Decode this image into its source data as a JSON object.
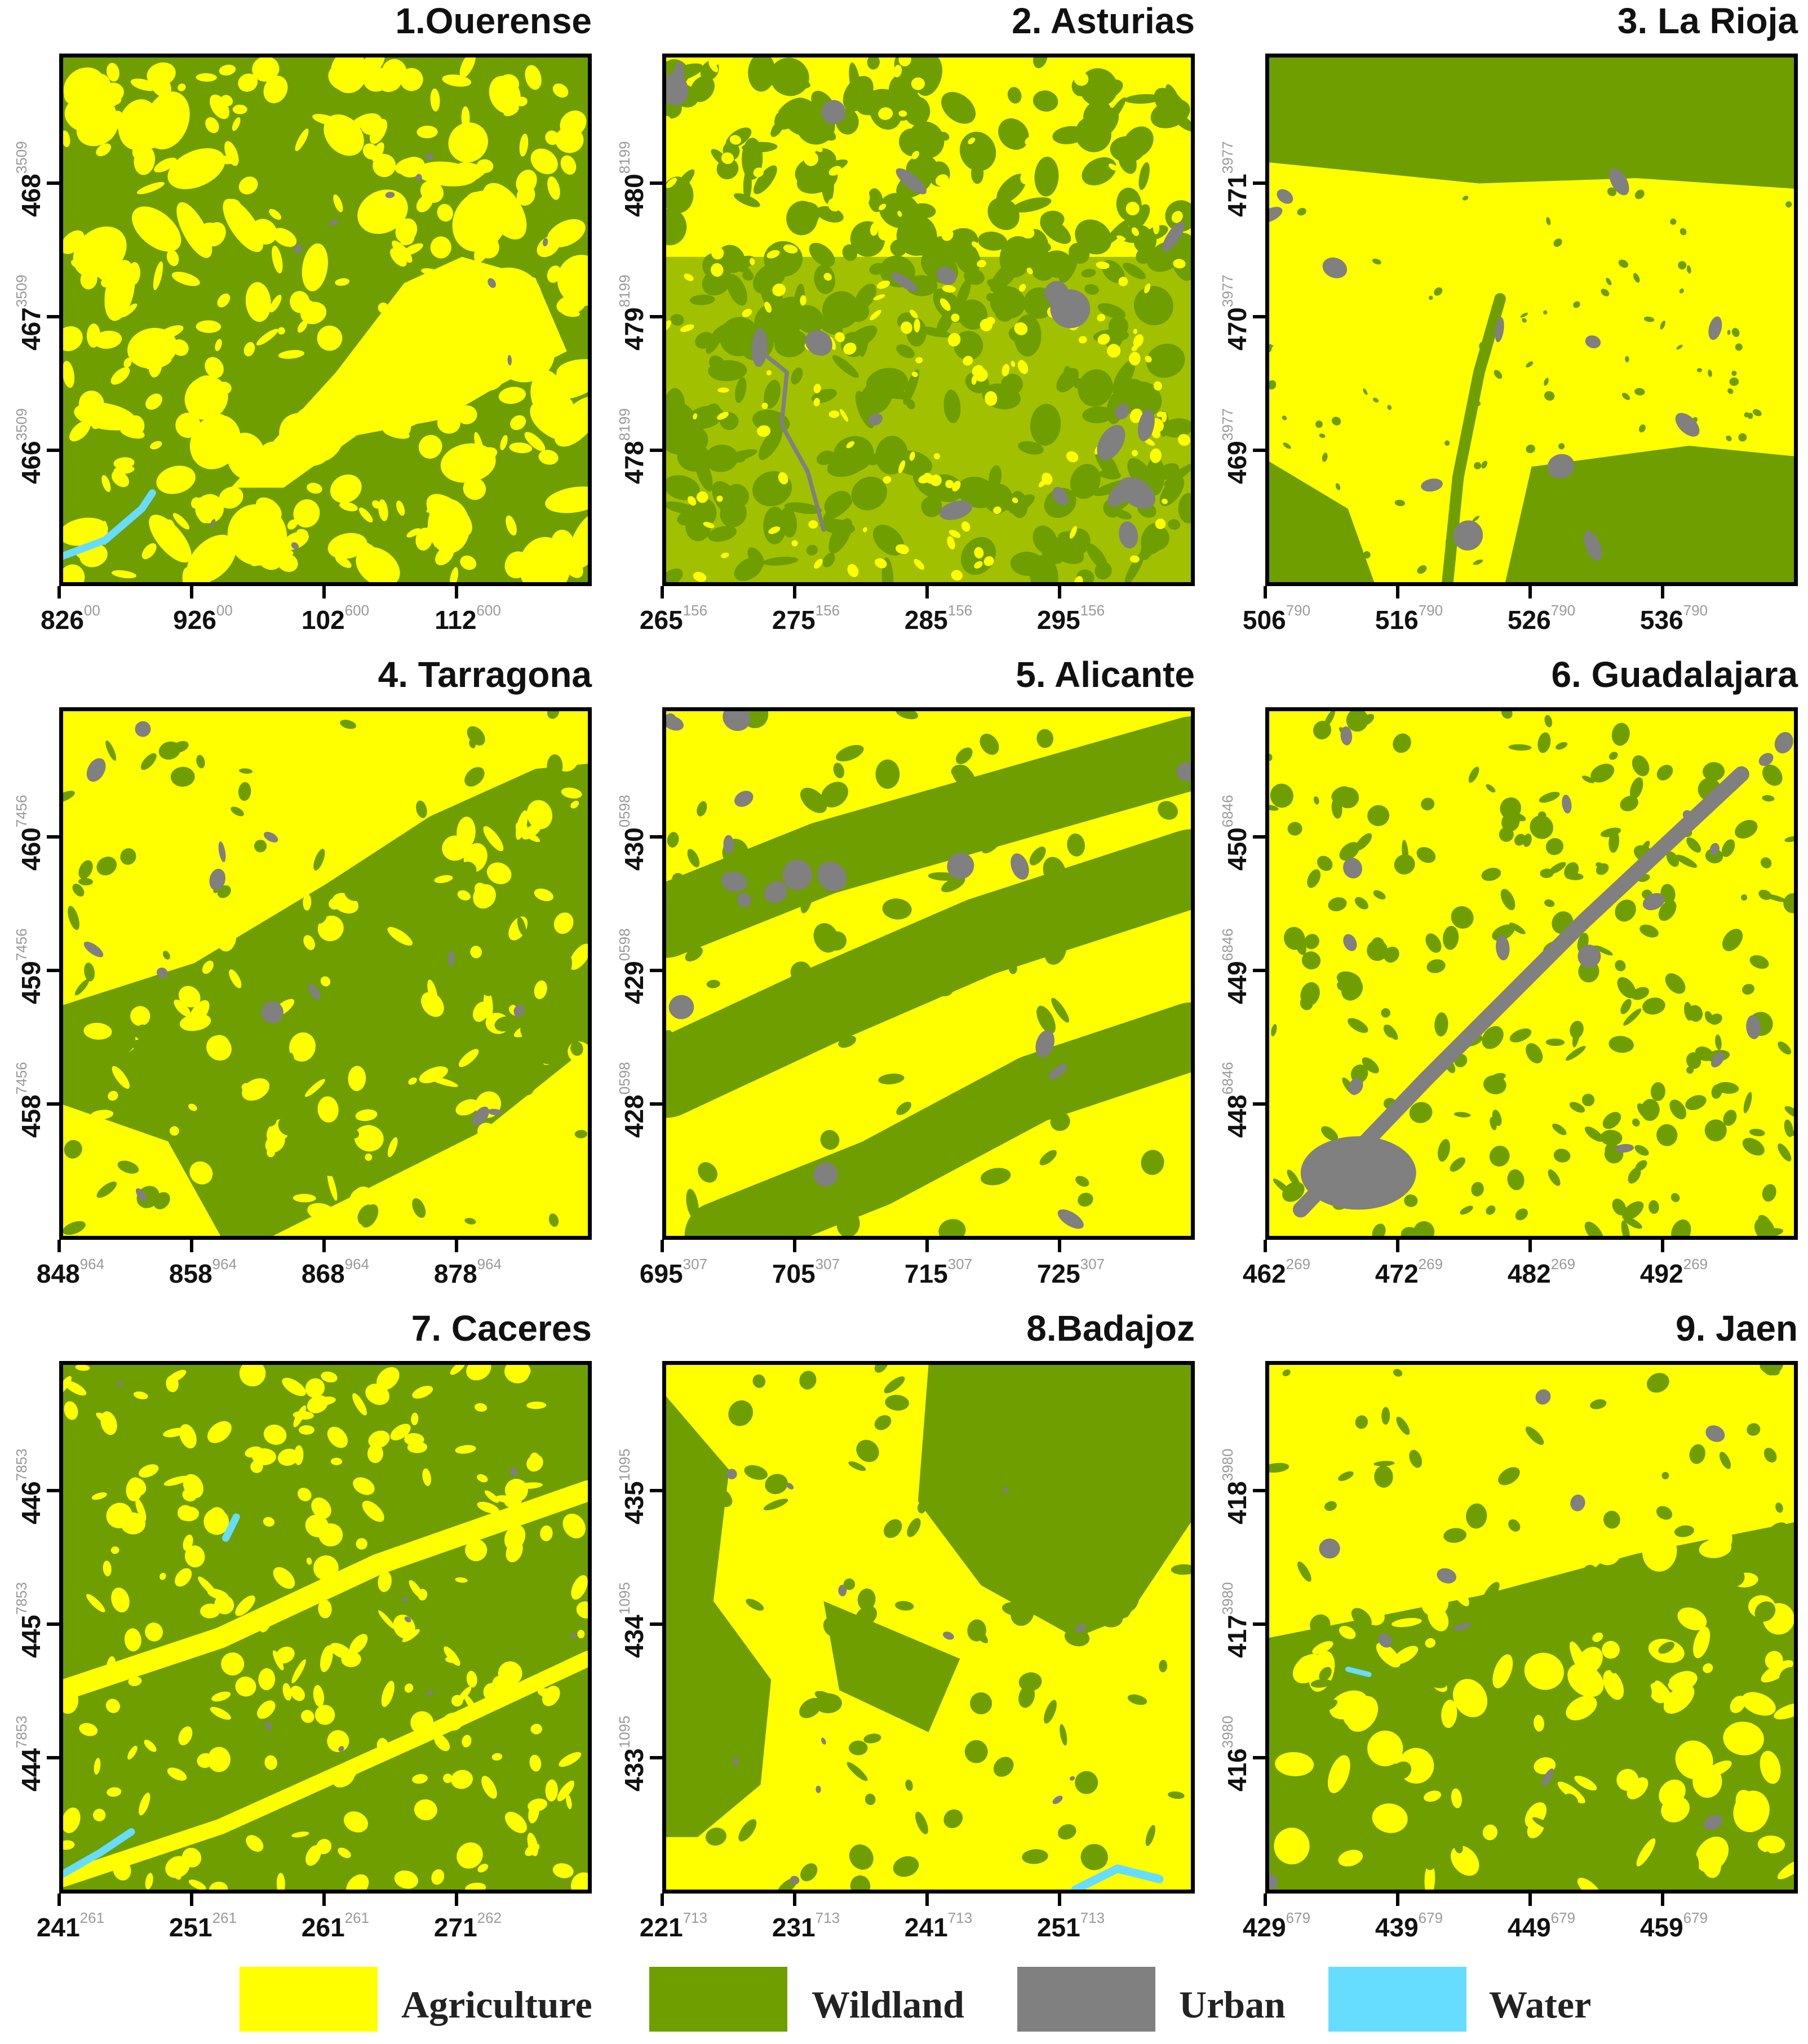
{
  "colors": {
    "agriculture": "#ffff00",
    "wildland": "#6e9e00",
    "urban": "#808080",
    "water": "#66ddff"
  },
  "panels": [
    {
      "title": "1.Ouerense",
      "x_ticks": [
        {
          "main": "826",
          "sup": "00"
        },
        {
          "main": "926",
          "sup": "00"
        },
        {
          "main": "102",
          "sup": "600"
        },
        {
          "main": "112",
          "sup": "600"
        }
      ],
      "y_ticks": [
        {
          "main": "468",
          "sup": "3509"
        },
        {
          "main": "467",
          "sup": "3509"
        },
        {
          "main": "466",
          "sup": "3509"
        }
      ]
    },
    {
      "title": "2. Asturias",
      "x_ticks": [
        {
          "main": "265",
          "sup": "156"
        },
        {
          "main": "275",
          "sup": "156"
        },
        {
          "main": "285",
          "sup": "156"
        },
        {
          "main": "295",
          "sup": "156"
        }
      ],
      "y_ticks": [
        {
          "main": "480",
          "sup": "8199"
        },
        {
          "main": "479",
          "sup": "8199"
        },
        {
          "main": "478",
          "sup": "8199"
        }
      ]
    },
    {
      "title": "3. La Rioja",
      "x_ticks": [
        {
          "main": "506",
          "sup": "790"
        },
        {
          "main": "516",
          "sup": "790"
        },
        {
          "main": "526",
          "sup": "790"
        },
        {
          "main": "536",
          "sup": "790"
        }
      ],
      "y_ticks": [
        {
          "main": "471",
          "sup": "3977"
        },
        {
          "main": "470",
          "sup": "3977"
        },
        {
          "main": "469",
          "sup": "3977"
        }
      ]
    },
    {
      "title": "4. Tarragona",
      "x_ticks": [
        {
          "main": "848",
          "sup": "964"
        },
        {
          "main": "858",
          "sup": "964"
        },
        {
          "main": "868",
          "sup": "964"
        },
        {
          "main": "878",
          "sup": "964"
        }
      ],
      "y_ticks": [
        {
          "main": "460",
          "sup": "7456"
        },
        {
          "main": "459",
          "sup": "7456"
        },
        {
          "main": "458",
          "sup": "7456"
        }
      ]
    },
    {
      "title": "5. Alicante",
      "x_ticks": [
        {
          "main": "695",
          "sup": "307"
        },
        {
          "main": "705",
          "sup": "307"
        },
        {
          "main": "715",
          "sup": "307"
        },
        {
          "main": "725",
          "sup": "307"
        }
      ],
      "y_ticks": [
        {
          "main": "430",
          "sup": "0598"
        },
        {
          "main": "429",
          "sup": "0598"
        },
        {
          "main": "428",
          "sup": "0598"
        }
      ]
    },
    {
      "title": "6. Guadalajara",
      "x_ticks": [
        {
          "main": "462",
          "sup": "269"
        },
        {
          "main": "472",
          "sup": "269"
        },
        {
          "main": "482",
          "sup": "269"
        },
        {
          "main": "492",
          "sup": "269"
        }
      ],
      "y_ticks": [
        {
          "main": "450",
          "sup": "6846"
        },
        {
          "main": "449",
          "sup": "6846"
        },
        {
          "main": "448",
          "sup": "6846"
        }
      ]
    },
    {
      "title": "7. Caceres",
      "x_ticks": [
        {
          "main": "241",
          "sup": "261"
        },
        {
          "main": "251",
          "sup": "261"
        },
        {
          "main": "261",
          "sup": "261"
        },
        {
          "main": "271",
          "sup": "262"
        }
      ],
      "y_ticks": [
        {
          "main": "446",
          "sup": "7853"
        },
        {
          "main": "445",
          "sup": "7853"
        },
        {
          "main": "444",
          "sup": "7853"
        }
      ]
    },
    {
      "title": "8.Badajoz",
      "x_ticks": [
        {
          "main": "221",
          "sup": "713"
        },
        {
          "main": "231",
          "sup": "713"
        },
        {
          "main": "241",
          "sup": "713"
        },
        {
          "main": "251",
          "sup": "713"
        }
      ],
      "y_ticks": [
        {
          "main": "435",
          "sup": "1095"
        },
        {
          "main": "434",
          "sup": "1095"
        },
        {
          "main": "433",
          "sup": "1095"
        }
      ]
    },
    {
      "title": "9. Jaen",
      "x_ticks": [
        {
          "main": "429",
          "sup": "679"
        },
        {
          "main": "439",
          "sup": "679"
        },
        {
          "main": "449",
          "sup": "679"
        },
        {
          "main": "459",
          "sup": "679"
        }
      ],
      "y_ticks": [
        {
          "main": "418",
          "sup": "3980"
        },
        {
          "main": "417",
          "sup": "3980"
        },
        {
          "main": "416",
          "sup": "3980"
        }
      ]
    }
  ],
  "legend": [
    {
      "label": "Agriculture",
      "color": "#ffff00"
    },
    {
      "label": "Wildland",
      "color": "#6e9e00"
    },
    {
      "label": "Urban",
      "color": "#808080"
    },
    {
      "label": "Water",
      "color": "#66ddff"
    }
  ]
}
